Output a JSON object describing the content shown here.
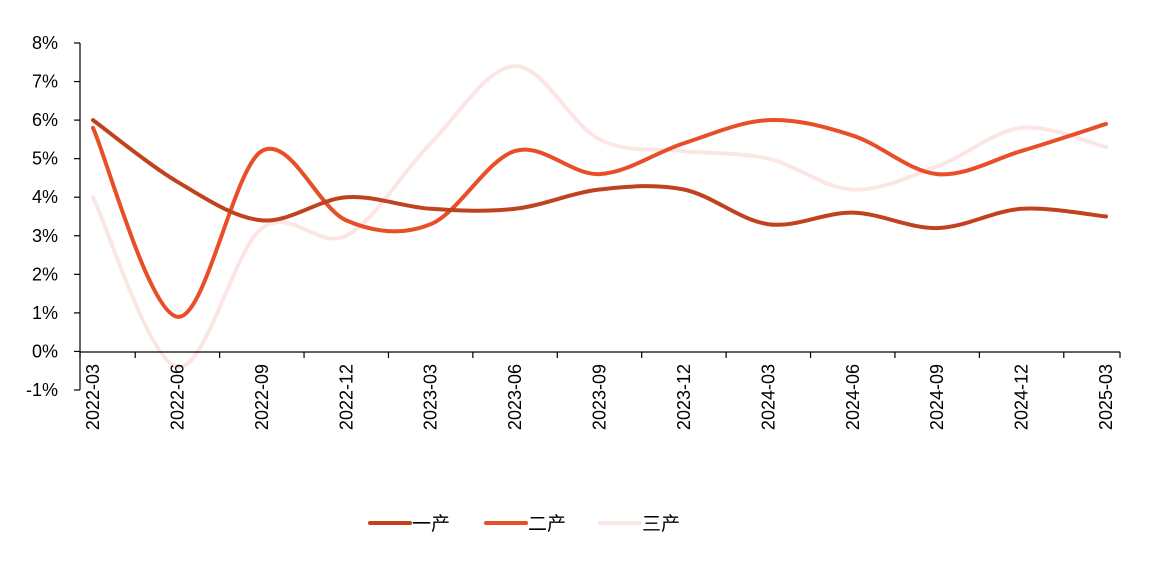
{
  "chart_data": {
    "type": "line",
    "title": "",
    "xlabel": "",
    "ylabel": "",
    "ylim": [
      -1,
      8
    ],
    "y_ticks": [
      "-1%",
      "0%",
      "1%",
      "2%",
      "3%",
      "4%",
      "5%",
      "6%",
      "7%",
      "8%"
    ],
    "y_tick_values": [
      -1,
      0,
      1,
      2,
      3,
      4,
      5,
      6,
      7,
      8
    ],
    "categories": [
      "2022-03",
      "2022-06",
      "2022-09",
      "2022-12",
      "2023-03",
      "2023-06",
      "2023-09",
      "2023-12",
      "2024-03",
      "2024-06",
      "2024-09",
      "2024-12",
      "2025-03"
    ],
    "grid": false,
    "legend_position": "bottom",
    "series": [
      {
        "name": "一产",
        "color": "#C0421F",
        "values": [
          6.0,
          4.4,
          3.4,
          4.0,
          3.7,
          3.7,
          4.2,
          4.2,
          3.3,
          3.6,
          3.2,
          3.7,
          3.5
        ]
      },
      {
        "name": "二产",
        "color": "#E84E27",
        "values": [
          5.8,
          0.9,
          5.2,
          3.4,
          3.3,
          5.2,
          4.6,
          5.4,
          6.0,
          5.6,
          4.6,
          5.2,
          5.9
        ]
      },
      {
        "name": "三产",
        "color": "#FBE6E4",
        "values": [
          4.0,
          -0.4,
          3.2,
          3.0,
          5.4,
          7.4,
          5.5,
          5.2,
          5.0,
          4.2,
          4.8,
          5.8,
          5.3
        ]
      }
    ]
  }
}
